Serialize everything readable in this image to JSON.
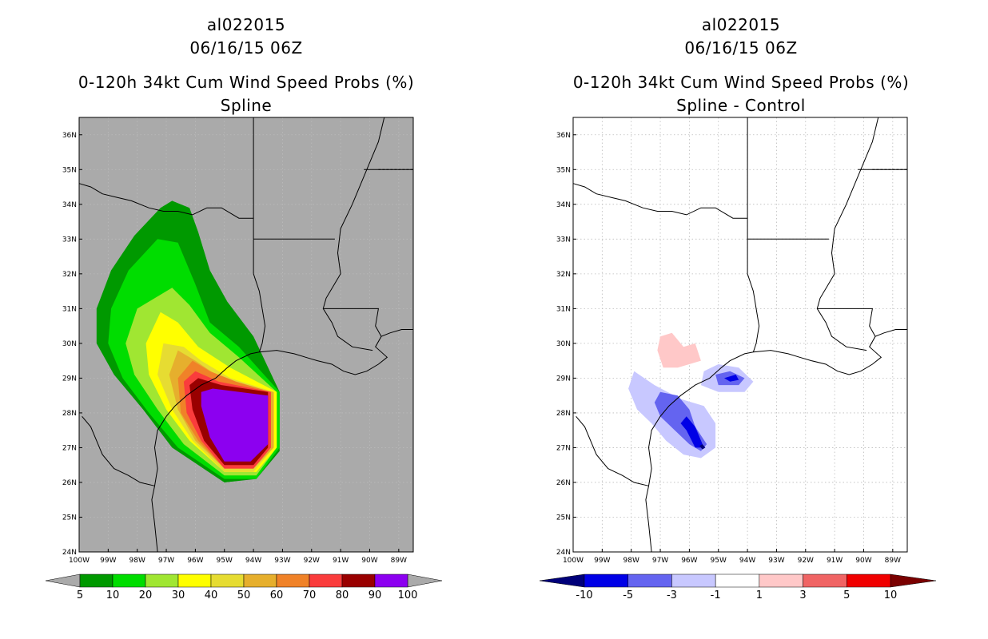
{
  "chart_data": [
    {
      "type": "contour-map",
      "title_lines": [
        "al022015",
        "06/16/15 06Z",
        "0-120h 34kt Cum Wind Speed Probs (%)",
        "Spline"
      ],
      "x_ticks": [
        "100W",
        "99W",
        "98W",
        "97W",
        "96W",
        "95W",
        "94W",
        "93W",
        "92W",
        "91W",
        "90W",
        "89W"
      ],
      "y_ticks": [
        "24N",
        "25N",
        "26N",
        "27N",
        "28N",
        "29N",
        "30N",
        "31N",
        "32N",
        "33N",
        "34N",
        "35N",
        "36N"
      ],
      "xlim": [
        -100,
        -88.5
      ],
      "ylim": [
        24,
        36.5
      ],
      "background": "#aaaaaa",
      "grid": true,
      "colorbar": {
        "levels": [
          "5",
          "10",
          "20",
          "30",
          "40",
          "50",
          "60",
          "70",
          "80",
          "90",
          "100"
        ],
        "colors": [
          "#009900",
          "#00dd00",
          "#a0e632",
          "#ffff00",
          "#e6dc32",
          "#e6af2d",
          "#f08228",
          "#fa3c3c",
          "#990000",
          "#8c00f0"
        ],
        "under": "#aaaaaa",
        "over": "#aaaaaa"
      },
      "contours": [
        {
          "level": 5,
          "color": "#009900",
          "points": [
            [
              -96.8,
              34.1
            ],
            [
              -96.2,
              33.9
            ],
            [
              -95.9,
              33.2
            ],
            [
              -95.5,
              32.1
            ],
            [
              -94.9,
              31.2
            ],
            [
              -94.0,
              30.2
            ],
            [
              -93.1,
              28.6
            ],
            [
              -93.1,
              26.9
            ],
            [
              -93.9,
              26.1
            ],
            [
              -95.0,
              26.0
            ],
            [
              -96.8,
              27.0
            ],
            [
              -97.8,
              28.1
            ],
            [
              -98.8,
              29.1
            ],
            [
              -99.4,
              30.0
            ],
            [
              -99.4,
              31.0
            ],
            [
              -98.9,
              32.1
            ],
            [
              -98.1,
              33.1
            ],
            [
              -97.2,
              33.9
            ]
          ]
        },
        {
          "level": 10,
          "color": "#00dd00",
          "points": [
            [
              -97.3,
              33.0
            ],
            [
              -96.6,
              32.9
            ],
            [
              -96.0,
              31.7
            ],
            [
              -95.5,
              30.6
            ],
            [
              -94.5,
              29.9
            ],
            [
              -93.1,
              28.6
            ],
            [
              -93.1,
              27.0
            ],
            [
              -93.9,
              26.1
            ],
            [
              -95.0,
              26.1
            ],
            [
              -96.6,
              27.0
            ],
            [
              -97.6,
              28.0
            ],
            [
              -98.5,
              29.0
            ],
            [
              -99.0,
              30.0
            ],
            [
              -98.9,
              31.0
            ],
            [
              -98.3,
              32.1
            ]
          ]
        },
        {
          "level": 20,
          "color": "#a0e632",
          "points": [
            [
              -96.8,
              31.6
            ],
            [
              -96.2,
              31.1
            ],
            [
              -95.5,
              30.3
            ],
            [
              -94.5,
              29.6
            ],
            [
              -93.2,
              28.6
            ],
            [
              -93.2,
              27.0
            ],
            [
              -93.9,
              26.2
            ],
            [
              -95.0,
              26.2
            ],
            [
              -96.4,
              27.1
            ],
            [
              -97.3,
              28.1
            ],
            [
              -98.1,
              29.1
            ],
            [
              -98.4,
              30.0
            ],
            [
              -98.0,
              31.0
            ]
          ]
        },
        {
          "level": 30,
          "color": "#ffff00",
          "points": [
            [
              -97.2,
              30.9
            ],
            [
              -96.6,
              30.6
            ],
            [
              -95.9,
              29.9
            ],
            [
              -94.8,
              29.3
            ],
            [
              -93.2,
              28.6
            ],
            [
              -93.2,
              27.0
            ],
            [
              -93.9,
              26.3
            ],
            [
              -95.0,
              26.3
            ],
            [
              -96.2,
              27.2
            ],
            [
              -97.0,
              28.1
            ],
            [
              -97.6,
              29.1
            ],
            [
              -97.7,
              30.0
            ]
          ]
        },
        {
          "level": 40,
          "color": "#e6dc32",
          "points": [
            [
              -97.1,
              30.0
            ],
            [
              -96.4,
              29.9
            ],
            [
              -95.8,
              29.5
            ],
            [
              -94.8,
              29.0
            ],
            [
              -93.3,
              28.6
            ],
            [
              -93.3,
              27.0
            ],
            [
              -94.0,
              26.3
            ],
            [
              -95.0,
              26.3
            ],
            [
              -96.1,
              27.2
            ],
            [
              -96.8,
              28.1
            ],
            [
              -97.3,
              29.1
            ]
          ]
        },
        {
          "level": 50,
          "color": "#e6af2d",
          "points": [
            [
              -96.6,
              29.8
            ],
            [
              -96.0,
              29.5
            ],
            [
              -95.3,
              29.1
            ],
            [
              -94.4,
              28.8
            ],
            [
              -93.3,
              28.6
            ],
            [
              -93.3,
              27.0
            ],
            [
              -94.0,
              26.4
            ],
            [
              -95.0,
              26.4
            ],
            [
              -96.0,
              27.2
            ],
            [
              -96.6,
              28.1
            ],
            [
              -96.9,
              29.1
            ]
          ]
        },
        {
          "level": 60,
          "color": "#f08228",
          "points": [
            [
              -96.1,
              29.5
            ],
            [
              -95.5,
              29.2
            ],
            [
              -94.6,
              28.9
            ],
            [
              -93.4,
              28.6
            ],
            [
              -93.4,
              27.0
            ],
            [
              -94.0,
              26.4
            ],
            [
              -95.0,
              26.4
            ],
            [
              -95.9,
              27.2
            ],
            [
              -96.5,
              28.0
            ],
            [
              -96.6,
              29.0
            ]
          ]
        },
        {
          "level": 70,
          "color": "#fa3c3c",
          "points": [
            [
              -96.0,
              29.2
            ],
            [
              -95.2,
              28.9
            ],
            [
              -94.0,
              28.7
            ],
            [
              -93.4,
              28.6
            ],
            [
              -93.4,
              27.0
            ],
            [
              -94.0,
              26.4
            ],
            [
              -95.0,
              26.4
            ],
            [
              -95.8,
              27.2
            ],
            [
              -96.3,
              28.0
            ],
            [
              -96.4,
              28.9
            ]
          ]
        },
        {
          "level": 80,
          "color": "#990000",
          "points": [
            [
              -95.9,
              29.0
            ],
            [
              -95.1,
              28.8
            ],
            [
              -93.5,
              28.6
            ],
            [
              -93.5,
              27.0
            ],
            [
              -94.0,
              26.5
            ],
            [
              -95.0,
              26.5
            ],
            [
              -95.7,
              27.2
            ],
            [
              -96.1,
              28.1
            ],
            [
              -96.2,
              28.8
            ]
          ]
        },
        {
          "level": 90,
          "color": "#8c00f0",
          "points": [
            [
              -95.4,
              28.7
            ],
            [
              -93.5,
              28.5
            ],
            [
              -93.5,
              27.1
            ],
            [
              -94.1,
              26.6
            ],
            [
              -95.0,
              26.6
            ],
            [
              -95.5,
              27.3
            ],
            [
              -95.8,
              28.2
            ],
            [
              -95.8,
              28.6
            ]
          ]
        }
      ]
    },
    {
      "type": "contour-map",
      "title_lines": [
        "al022015",
        "06/16/15 06Z",
        "0-120h 34kt Cum Wind Speed Probs (%)",
        "Spline - Control"
      ],
      "x_ticks": [
        "100W",
        "99W",
        "98W",
        "97W",
        "96W",
        "95W",
        "94W",
        "93W",
        "92W",
        "91W",
        "90W",
        "89W"
      ],
      "y_ticks": [
        "24N",
        "25N",
        "26N",
        "27N",
        "28N",
        "29N",
        "30N",
        "31N",
        "32N",
        "33N",
        "34N",
        "35N",
        "36N"
      ],
      "xlim": [
        -100,
        -88.5
      ],
      "ylim": [
        24,
        36.5
      ],
      "background": "#ffffff",
      "grid": true,
      "colorbar": {
        "levels": [
          "-10",
          "-5",
          "-3",
          "-1",
          "1",
          "3",
          "5",
          "10"
        ],
        "colors": [
          "#0000e6",
          "#6464f0",
          "#c8c8ff",
          "#ffffff",
          "#ffc8c8",
          "#f06464",
          "#f00000"
        ],
        "under": "#00007a",
        "over": "#7a0000"
      },
      "contours": [
        {
          "level": 1,
          "color": "#ffc8c8",
          "points": [
            [
              -97.0,
              30.2
            ],
            [
              -96.6,
              30.3
            ],
            [
              -96.2,
              29.9
            ],
            [
              -95.8,
              30.0
            ],
            [
              -95.6,
              29.5
            ],
            [
              -96.4,
              29.3
            ],
            [
              -96.9,
              29.3
            ],
            [
              -97.1,
              29.8
            ]
          ]
        },
        {
          "level": -1,
          "color": "#c8c8ff",
          "points": [
            [
              -97.9,
              29.2
            ],
            [
              -97.2,
              28.8
            ],
            [
              -96.3,
              28.4
            ],
            [
              -95.5,
              28.2
            ],
            [
              -95.1,
              27.7
            ],
            [
              -95.1,
              27.0
            ],
            [
              -95.6,
              26.7
            ],
            [
              -96.2,
              26.8
            ],
            [
              -96.8,
              27.2
            ],
            [
              -97.3,
              27.7
            ],
            [
              -97.8,
              28.1
            ],
            [
              -98.1,
              28.7
            ]
          ]
        },
        {
          "level": -1,
          "color": "#c8c8ff",
          "points": [
            [
              -95.5,
              29.2
            ],
            [
              -95.0,
              29.4
            ],
            [
              -94.3,
              29.3
            ],
            [
              -93.8,
              28.9
            ],
            [
              -94.1,
              28.6
            ],
            [
              -95.0,
              28.6
            ],
            [
              -95.6,
              28.8
            ]
          ]
        },
        {
          "level": -3,
          "color": "#6464f0",
          "points": [
            [
              -97.0,
              28.6
            ],
            [
              -96.4,
              28.5
            ],
            [
              -96.0,
              28.1
            ],
            [
              -95.8,
              27.6
            ],
            [
              -95.4,
              27.1
            ],
            [
              -95.6,
              26.9
            ],
            [
              -96.0,
              27.1
            ],
            [
              -96.5,
              27.5
            ],
            [
              -97.0,
              27.9
            ],
            [
              -97.2,
              28.3
            ]
          ]
        },
        {
          "level": -3,
          "color": "#6464f0",
          "points": [
            [
              -95.1,
              29.1
            ],
            [
              -94.6,
              29.2
            ],
            [
              -94.1,
              29.0
            ],
            [
              -94.3,
              28.8
            ],
            [
              -95.0,
              28.8
            ]
          ]
        },
        {
          "level": -5,
          "color": "#0000e6",
          "points": [
            [
              -96.1,
              27.9
            ],
            [
              -95.8,
              27.6
            ],
            [
              -95.5,
              27.0
            ],
            [
              -95.8,
              27.0
            ],
            [
              -96.1,
              27.5
            ],
            [
              -96.3,
              27.7
            ]
          ]
        },
        {
          "level": -5,
          "color": "#0000e6",
          "points": [
            [
              -94.8,
              29.0
            ],
            [
              -94.4,
              29.1
            ],
            [
              -94.3,
              28.95
            ],
            [
              -94.6,
              28.9
            ]
          ]
        },
        {
          "level": -10,
          "color": "#00007a",
          "points": [
            [
              -95.65,
              27.05
            ],
            [
              -95.55,
              27.1
            ],
            [
              -95.45,
              27.0
            ],
            [
              -95.55,
              26.95
            ]
          ]
        }
      ]
    }
  ]
}
